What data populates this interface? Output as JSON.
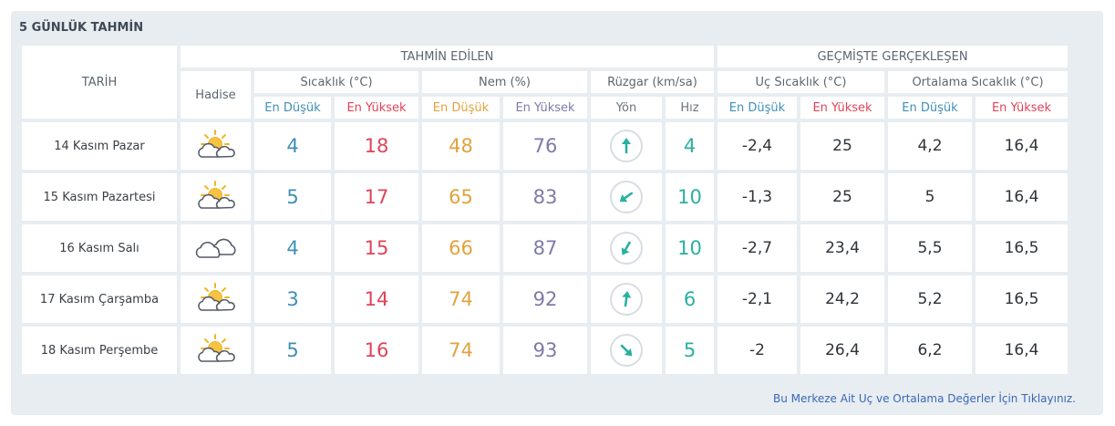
{
  "title": "5 GÜNLÜK TAHMİN",
  "header": {
    "date_label": "TARİH",
    "forecast_group": "TAHMİN EDİLEN",
    "history_group": "GEÇMİŞTE GERÇEKLEŞEN",
    "event_label": "Hadise",
    "temp_label": "Sıcaklık (°C)",
    "humidity_label": "Nem (%)",
    "wind_label": "Rüzgar (km/sa)",
    "extreme_temp_label": "Uç Sıcaklık (°C)",
    "avg_temp_label": "Ortalama Sıcaklık (°C)",
    "min_label": "En Düşük",
    "max_label": "En Yüksek",
    "direction_label": "Yön",
    "speed_label": "Hız"
  },
  "rows": [
    {
      "date": "14 Kasım Pazar",
      "icon": "partly-cloudy-icon",
      "temp_min": "4",
      "temp_max": "18",
      "hum_min": "48",
      "hum_max": "76",
      "wind_dir_deg": 0,
      "wind_speed": "4",
      "ext_min": "-2,4",
      "ext_max": "25",
      "avg_min": "4,2",
      "avg_max": "16,4"
    },
    {
      "date": "15 Kasım Pazartesi",
      "icon": "partly-cloudy-icon",
      "temp_min": "5",
      "temp_max": "17",
      "hum_min": "65",
      "hum_max": "83",
      "wind_dir_deg": 235,
      "wind_speed": "10",
      "ext_min": "-1,3",
      "ext_max": "25",
      "avg_min": "5",
      "avg_max": "16,4"
    },
    {
      "date": "16 Kasım Salı",
      "icon": "cloudy-icon",
      "temp_min": "4",
      "temp_max": "15",
      "hum_min": "66",
      "hum_max": "87",
      "wind_dir_deg": 210,
      "wind_speed": "10",
      "ext_min": "-2,7",
      "ext_max": "23,4",
      "avg_min": "5,5",
      "avg_max": "16,5"
    },
    {
      "date": "17 Kasım Çarşamba",
      "icon": "partly-cloudy-icon",
      "temp_min": "3",
      "temp_max": "14",
      "hum_min": "74",
      "hum_max": "92",
      "wind_dir_deg": 8,
      "wind_speed": "6",
      "ext_min": "-2,1",
      "ext_max": "24,2",
      "avg_min": "5,2",
      "avg_max": "16,5"
    },
    {
      "date": "18 Kasım Perşembe",
      "icon": "partly-cloudy-icon",
      "temp_min": "5",
      "temp_max": "16",
      "hum_min": "74",
      "hum_max": "93",
      "wind_dir_deg": 135,
      "wind_speed": "5",
      "ext_min": "-2",
      "ext_max": "26,4",
      "avg_min": "6,2",
      "avg_max": "16,4"
    }
  ],
  "footer_link": "Bu Merkeze Ait Uç ve Ortalama Değerler İçin Tıklayınız.",
  "colors": {
    "min": "#3f8fb7",
    "max": "#e0435a",
    "hum_min": "#e2a23d",
    "hum_max": "#7e7aa8",
    "wind": "#2bb0a0",
    "panel": "#e8edf1"
  }
}
